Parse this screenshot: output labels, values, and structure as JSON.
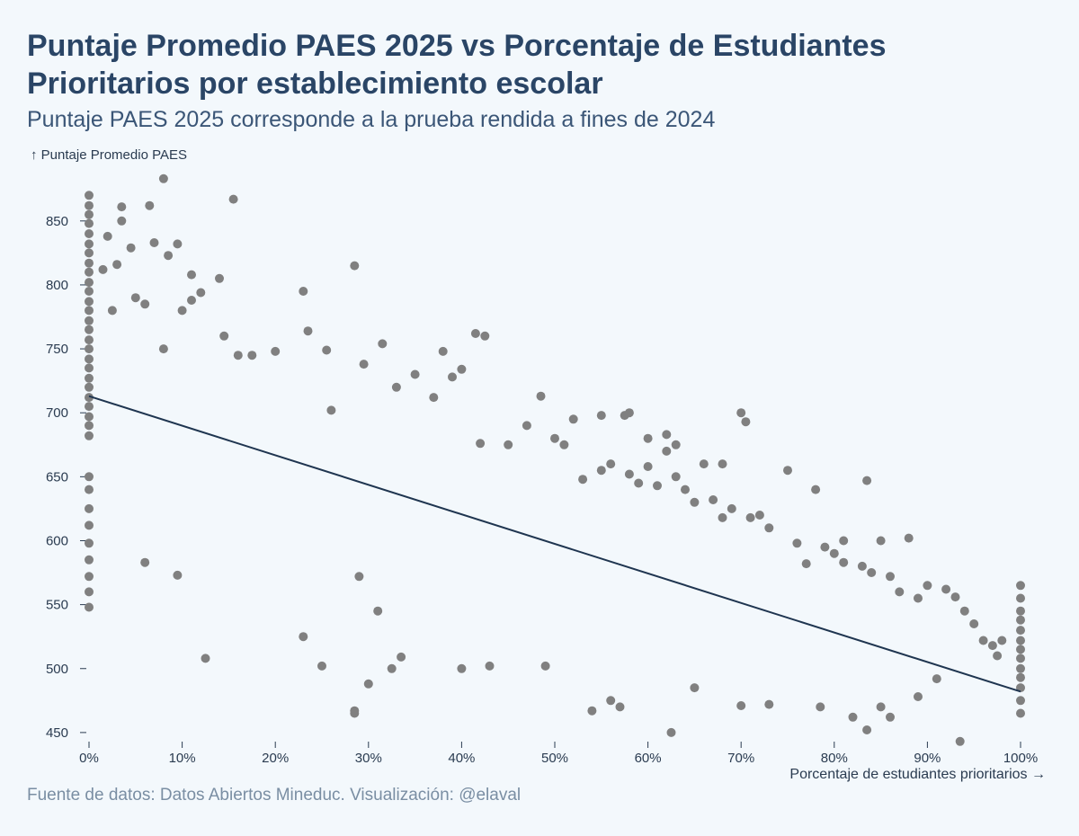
{
  "title": "Puntaje Promedio PAES 2025 vs Porcentaje de Estudiantes Prioritarios por establecimiento escolar",
  "subtitle": "Puntaje PAES 2025 corresponde a la prueba rendida a fines de 2024",
  "footer": "Fuente de datos: Datos Abiertos Mineduc. Visualización: @elaval",
  "chart_data": {
    "type": "scatter",
    "ylabel": "↑ Puntaje Promedio PAES",
    "xlabel": "Porcentaje de estudiantes prioritarios →",
    "xlim": [
      0,
      100
    ],
    "ylim": [
      445,
      885
    ],
    "xticks": [
      0,
      10,
      20,
      30,
      40,
      50,
      60,
      70,
      80,
      90,
      100
    ],
    "xtick_labels": [
      "0%",
      "10%",
      "20%",
      "30%",
      "40%",
      "50%",
      "60%",
      "70%",
      "80%",
      "90%",
      "100%"
    ],
    "yticks": [
      450,
      500,
      550,
      600,
      650,
      700,
      750,
      800,
      850
    ],
    "ytick_labels": [
      "450",
      "500",
      "550",
      "600",
      "650",
      "700",
      "750",
      "800",
      "850"
    ],
    "trend": {
      "x": [
        0,
        100
      ],
      "y": [
        713,
        482
      ]
    },
    "point_color": "#808080",
    "trend_color": "#1f3550",
    "points": [
      [
        0,
        870
      ],
      [
        0,
        862
      ],
      [
        0,
        855
      ],
      [
        0,
        848
      ],
      [
        0,
        840
      ],
      [
        0,
        832
      ],
      [
        0,
        825
      ],
      [
        0,
        817
      ],
      [
        0,
        810
      ],
      [
        0,
        802
      ],
      [
        0,
        795
      ],
      [
        0,
        787
      ],
      [
        0,
        780
      ],
      [
        0,
        772
      ],
      [
        0,
        765
      ],
      [
        0,
        757
      ],
      [
        0,
        750
      ],
      [
        0,
        742
      ],
      [
        0,
        735
      ],
      [
        0,
        727
      ],
      [
        0,
        720
      ],
      [
        0,
        712
      ],
      [
        0,
        705
      ],
      [
        0,
        697
      ],
      [
        0,
        690
      ],
      [
        0,
        682
      ],
      [
        0,
        650
      ],
      [
        0,
        640
      ],
      [
        0,
        625
      ],
      [
        0,
        612
      ],
      [
        0,
        598
      ],
      [
        0,
        585
      ],
      [
        0,
        572
      ],
      [
        0,
        560
      ],
      [
        0,
        548
      ],
      [
        100,
        565
      ],
      [
        100,
        555
      ],
      [
        100,
        545
      ],
      [
        100,
        538
      ],
      [
        100,
        530
      ],
      [
        100,
        522
      ],
      [
        100,
        515
      ],
      [
        100,
        508
      ],
      [
        100,
        500
      ],
      [
        100,
        493
      ],
      [
        100,
        485
      ],
      [
        100,
        475
      ],
      [
        100,
        465
      ],
      [
        8,
        883
      ],
      [
        15.5,
        867
      ],
      [
        6.5,
        862
      ],
      [
        3.5,
        861
      ],
      [
        2,
        838
      ],
      [
        3.5,
        850
      ],
      [
        9.5,
        832
      ],
      [
        7,
        833
      ],
      [
        4.5,
        829
      ],
      [
        8.5,
        823
      ],
      [
        1.5,
        812
      ],
      [
        3,
        816
      ],
      [
        11,
        808
      ],
      [
        14,
        805
      ],
      [
        12,
        794
      ],
      [
        23,
        795
      ],
      [
        28.5,
        815
      ],
      [
        5,
        790
      ],
      [
        2.5,
        780
      ],
      [
        6,
        785
      ],
      [
        10,
        780
      ],
      [
        11,
        788
      ],
      [
        14.5,
        760
      ],
      [
        8,
        750
      ],
      [
        16,
        745
      ],
      [
        17.5,
        745
      ],
      [
        20,
        748
      ],
      [
        23.5,
        764
      ],
      [
        25.5,
        749
      ],
      [
        31.5,
        754
      ],
      [
        38,
        748
      ],
      [
        39,
        728
      ],
      [
        40,
        734
      ],
      [
        41.5,
        762
      ],
      [
        42.5,
        760
      ],
      [
        35,
        730
      ],
      [
        33,
        720
      ],
      [
        37,
        712
      ],
      [
        48.5,
        713
      ],
      [
        29.5,
        738
      ],
      [
        26,
        702
      ],
      [
        6,
        583
      ],
      [
        9.5,
        573
      ],
      [
        12.5,
        508
      ],
      [
        23,
        525
      ],
      [
        25,
        502
      ],
      [
        28.5,
        467
      ],
      [
        28.5,
        465
      ],
      [
        30,
        488
      ],
      [
        29,
        572
      ],
      [
        31,
        545
      ],
      [
        32.5,
        500
      ],
      [
        33.5,
        509
      ],
      [
        40,
        500
      ],
      [
        43,
        502
      ],
      [
        49,
        502
      ],
      [
        54,
        467
      ],
      [
        56,
        475
      ],
      [
        57,
        470
      ],
      [
        62.5,
        450
      ],
      [
        65,
        485
      ],
      [
        70,
        471
      ],
      [
        73,
        472
      ],
      [
        78.5,
        470
      ],
      [
        82,
        462
      ],
      [
        83.5,
        452
      ],
      [
        85,
        470
      ],
      [
        86,
        462
      ],
      [
        89,
        478
      ],
      [
        93.5,
        443
      ],
      [
        91,
        492
      ],
      [
        88,
        602
      ],
      [
        85,
        600
      ],
      [
        83.5,
        647
      ],
      [
        81,
        600
      ],
      [
        78,
        640
      ],
      [
        75,
        655
      ],
      [
        70,
        700
      ],
      [
        70.5,
        693
      ],
      [
        66,
        660
      ],
      [
        68,
        660
      ],
      [
        62,
        683
      ],
      [
        60,
        680
      ],
      [
        58,
        700
      ],
      [
        55,
        698
      ],
      [
        57.5,
        698
      ],
      [
        52,
        695
      ],
      [
        50,
        680
      ],
      [
        47,
        690
      ],
      [
        45,
        675
      ],
      [
        42,
        676
      ],
      [
        51,
        675
      ],
      [
        63,
        675
      ],
      [
        62,
        670
      ],
      [
        96,
        522
      ],
      [
        97,
        518
      ],
      [
        97.5,
        510
      ],
      [
        98,
        522
      ],
      [
        95,
        535
      ],
      [
        94,
        545
      ],
      [
        93,
        556
      ],
      [
        92,
        562
      ],
      [
        90,
        565
      ],
      [
        89,
        555
      ],
      [
        87,
        560
      ],
      [
        86,
        572
      ],
      [
        84,
        575
      ],
      [
        83,
        580
      ],
      [
        81,
        583
      ],
      [
        80,
        590
      ],
      [
        79,
        595
      ],
      [
        77,
        582
      ],
      [
        76,
        598
      ],
      [
        73,
        610
      ],
      [
        72,
        620
      ],
      [
        71,
        618
      ],
      [
        69,
        625
      ],
      [
        68,
        618
      ],
      [
        67,
        632
      ],
      [
        65,
        630
      ],
      [
        64,
        640
      ],
      [
        63,
        650
      ],
      [
        61,
        643
      ],
      [
        60,
        658
      ],
      [
        59,
        645
      ],
      [
        58,
        652
      ],
      [
        56,
        660
      ],
      [
        55,
        655
      ],
      [
        53,
        648
      ]
    ]
  }
}
